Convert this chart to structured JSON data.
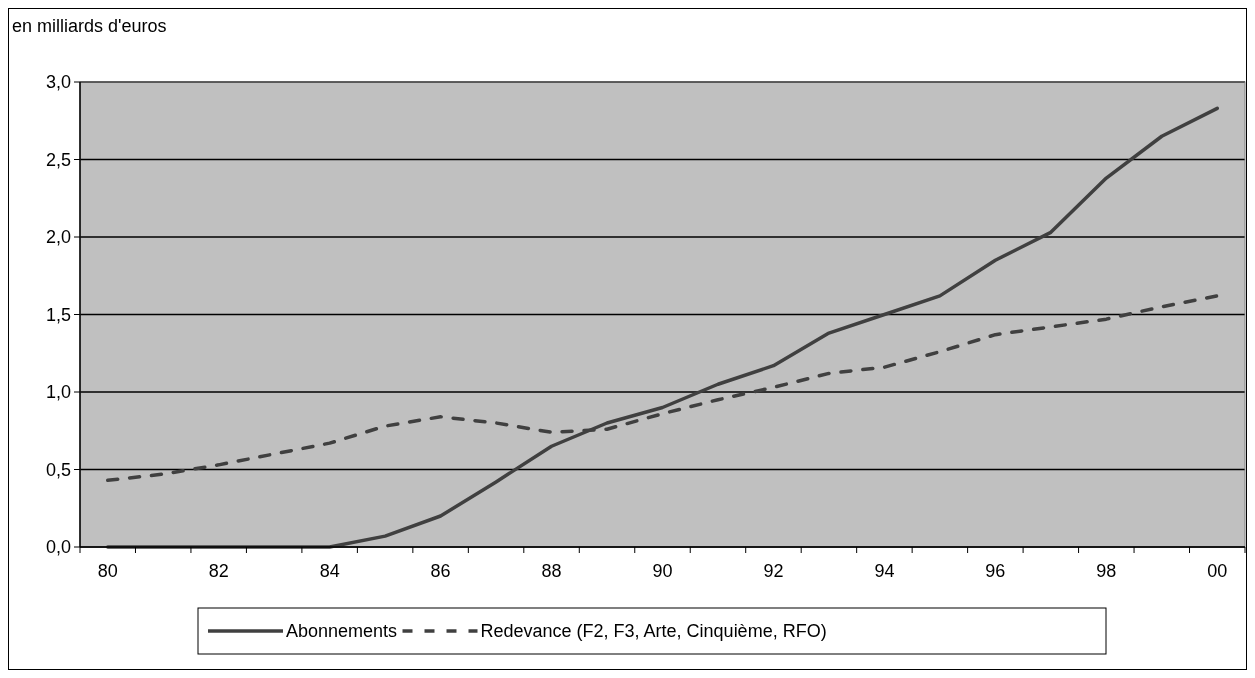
{
  "chart_data": {
    "type": "line",
    "ylabel": "en milliards d'euros",
    "categories": [
      "80",
      null,
      "82",
      null,
      "84",
      null,
      "86",
      null,
      "88",
      null,
      "90",
      null,
      "92",
      null,
      "94",
      null,
      "96",
      null,
      "98",
      null,
      "00"
    ],
    "series": [
      {
        "name": "Abonnements",
        "color": "#404040",
        "line_style": "solid",
        "values": [
          0,
          0,
          0,
          0,
          0,
          0.07,
          0.2,
          0.42,
          0.65,
          0.8,
          0.9,
          1.05,
          1.17,
          1.38,
          1.5,
          1.62,
          1.85,
          2.03,
          2.38,
          2.65,
          2.83
        ]
      },
      {
        "name": "Redevance (F2, F3, Arte, Cinquième, RFO)",
        "color": "#404040",
        "line_style": "dashed",
        "values": [
          0.43,
          0.47,
          0.53,
          0.6,
          0.67,
          0.78,
          0.84,
          0.8,
          0.74,
          0.76,
          0.86,
          0.95,
          1.03,
          1.12,
          1.16,
          1.26,
          1.37,
          1.42,
          1.47,
          1.55,
          1.62
        ]
      }
    ],
    "ylim": [
      0,
      3
    ],
    "yticks": [
      {
        "value": 0,
        "label": "0,0"
      },
      {
        "value": 0.5,
        "label": "0,5"
      },
      {
        "value": 1,
        "label": "1,0"
      },
      {
        "value": 1.5,
        "label": "1,5"
      },
      {
        "value": 2,
        "label": "2,0"
      },
      {
        "value": 2.5,
        "label": "2,5"
      },
      {
        "value": 3,
        "label": "3,0"
      }
    ],
    "grid": "y",
    "legend": "bottom",
    "marker": "none"
  }
}
